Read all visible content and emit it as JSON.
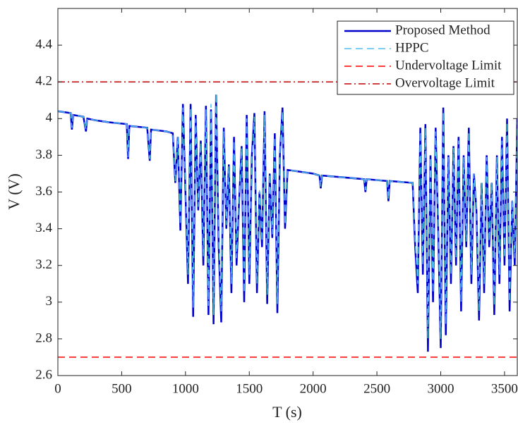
{
  "chart_data": {
    "type": "line",
    "xlabel": "T (s)",
    "ylabel": "V (V)",
    "xlim": [
      0,
      3600
    ],
    "ylim": [
      2.6,
      4.6
    ],
    "xticks": [
      0,
      500,
      1000,
      1500,
      2000,
      2500,
      3000,
      3500
    ],
    "yticks": [
      2.6,
      2.8,
      3,
      3.2,
      3.4,
      3.6,
      3.8,
      4,
      4.2,
      4.4
    ],
    "legend": "upper right",
    "x": [
      0,
      100,
      110,
      120,
      200,
      220,
      230,
      300,
      400,
      540,
      550,
      560,
      700,
      720,
      730,
      850,
      900,
      920,
      940,
      960,
      980,
      1000,
      1020,
      1040,
      1060,
      1080,
      1100,
      1120,
      1140,
      1160,
      1180,
      1200,
      1220,
      1240,
      1260,
      1280,
      1300,
      1320,
      1340,
      1360,
      1380,
      1400,
      1420,
      1440,
      1460,
      1480,
      1500,
      1520,
      1540,
      1560,
      1580,
      1600,
      1620,
      1640,
      1660,
      1680,
      1700,
      1720,
      1740,
      1760,
      1780,
      1800,
      2000,
      2050,
      2060,
      2070,
      2400,
      2410,
      2420,
      2580,
      2590,
      2600,
      2780,
      2800,
      2820,
      2840,
      2860,
      2880,
      2900,
      2920,
      2940,
      2960,
      2980,
      3000,
      3020,
      3040,
      3060,
      3080,
      3100,
      3120,
      3140,
      3160,
      3180,
      3200,
      3220,
      3240,
      3260,
      3280,
      3300,
      3320,
      3340,
      3360,
      3380,
      3400,
      3420,
      3440,
      3460,
      3480,
      3500,
      3520,
      3540,
      3560,
      3580,
      3600
    ],
    "series": [
      {
        "name": "Proposed Method",
        "color": "#0000cd",
        "style": "solid",
        "values": [
          4.04,
          4.03,
          3.94,
          4.02,
          4.01,
          3.93,
          4.0,
          3.99,
          3.98,
          3.97,
          3.78,
          3.96,
          3.95,
          3.77,
          3.94,
          3.93,
          3.92,
          3.65,
          3.9,
          3.39,
          4.08,
          3.6,
          3.1,
          4.08,
          2.92,
          4.02,
          3.5,
          3.88,
          3.2,
          4.07,
          2.93,
          4.05,
          2.88,
          4.13,
          3.3,
          2.89,
          3.95,
          3.4,
          3.75,
          3.05,
          3.9,
          3.2,
          3.55,
          3.85,
          3.0,
          4.02,
          3.1,
          3.8,
          4.03,
          3.05,
          3.6,
          3.3,
          4.04,
          2.99,
          3.7,
          3.35,
          3.92,
          2.94,
          3.8,
          4.06,
          3.4,
          3.72,
          3.7,
          3.69,
          3.62,
          3.69,
          3.67,
          3.6,
          3.67,
          3.66,
          3.55,
          3.66,
          3.65,
          3.3,
          3.05,
          3.95,
          3.15,
          3.97,
          2.73,
          3.8,
          3.0,
          3.95,
          3.4,
          2.75,
          4.06,
          2.82,
          3.8,
          3.1,
          3.85,
          3.2,
          3.9,
          2.95,
          3.8,
          3.3,
          3.95,
          3.1,
          3.7,
          3.5,
          2.9,
          3.65,
          3.05,
          3.8,
          3.3,
          3.65,
          2.93,
          3.8,
          3.1,
          3.9,
          3.2,
          4.0,
          2.95,
          3.55,
          3.2,
          4.0
        ]
      },
      {
        "name": "HPPC",
        "color": "#4dbeee",
        "style": "dashed",
        "values": [
          4.04,
          4.03,
          3.95,
          4.02,
          4.01,
          3.94,
          4.0,
          3.99,
          3.98,
          3.97,
          3.79,
          3.96,
          3.95,
          3.78,
          3.94,
          3.93,
          3.92,
          3.66,
          3.9,
          3.42,
          4.06,
          3.62,
          3.15,
          4.06,
          2.97,
          4.0,
          3.52,
          3.87,
          3.25,
          4.05,
          2.98,
          4.08,
          2.93,
          4.14,
          3.33,
          2.95,
          3.93,
          3.42,
          3.74,
          3.1,
          3.88,
          3.24,
          3.56,
          3.84,
          3.05,
          4.0,
          3.15,
          3.79,
          4.01,
          3.1,
          3.61,
          3.33,
          4.02,
          3.04,
          3.7,
          3.37,
          3.9,
          2.99,
          3.8,
          4.04,
          3.42,
          3.72,
          3.7,
          3.69,
          3.63,
          3.69,
          3.67,
          3.61,
          3.67,
          3.66,
          3.56,
          3.66,
          3.65,
          3.33,
          3.1,
          3.93,
          3.2,
          3.95,
          2.8,
          3.79,
          3.05,
          3.93,
          3.42,
          2.8,
          4.04,
          2.88,
          3.79,
          3.15,
          3.84,
          3.24,
          3.88,
          3.0,
          3.79,
          3.33,
          3.93,
          3.15,
          3.7,
          3.51,
          2.95,
          3.65,
          3.1,
          3.79,
          3.33,
          3.65,
          2.98,
          3.79,
          3.15,
          3.88,
          3.24,
          3.98,
          3.0,
          3.56,
          3.24,
          3.98
        ]
      },
      {
        "name": "Undervoltage Limit",
        "color": "#ff0000",
        "style": "dashed",
        "x": [
          0,
          3600
        ],
        "values": [
          2.7,
          2.7
        ]
      },
      {
        "name": "Overvoltage Limit",
        "color": "#c00000",
        "style": "dashdot",
        "x": [
          0,
          3600
        ],
        "values": [
          4.2,
          4.2
        ]
      }
    ]
  }
}
